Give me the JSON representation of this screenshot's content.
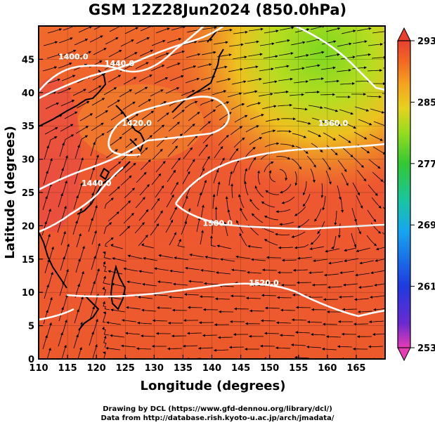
{
  "title": "GSM 12Z28Jun2024 (850.0hPa)",
  "xlabel": "Longitude (degrees)",
  "ylabel": "Latitude  (degrees)",
  "credits": [
    "Drawing by DCL (https://www.gfd-dennou.org/library/dcl/)",
    "Data from http://database.rish.kyoto-u.ac.jp/arch/jmadata/"
  ],
  "map": {
    "lon_range": [
      110,
      170
    ],
    "lat_range": [
      0,
      50
    ],
    "x_ticks": [
      110,
      115,
      120,
      125,
      130,
      135,
      140,
      145,
      150,
      155,
      160,
      165
    ],
    "y_ticks": [
      0,
      5,
      10,
      15,
      20,
      25,
      30,
      35,
      40,
      45
    ],
    "grid": true,
    "field": "temperature (shaded) with streamlines and geopotential height contours"
  },
  "colorbar": {
    "ticks": [
      293,
      285,
      277,
      269,
      261,
      253
    ],
    "min": 253,
    "max": 293,
    "colors": [
      "#e63cb4",
      "#6a2ad0",
      "#1e3ae0",
      "#16a6f0",
      "#18c6a0",
      "#32c832",
      "#96dc1e",
      "#e6d21e",
      "#f5a21e",
      "#f26a22",
      "#e84030"
    ]
  },
  "contours": [
    {
      "label": "1400.0",
      "lon": 116,
      "lat": 45
    },
    {
      "label": "1440.0",
      "lon": 124,
      "lat": 44
    },
    {
      "label": "1420.0",
      "lon": 127,
      "lat": 35
    },
    {
      "label": "1440.0",
      "lon": 120,
      "lat": 26
    },
    {
      "label": "1560.0",
      "lon": 161,
      "lat": 35
    },
    {
      "label": "1500.0",
      "lon": 141,
      "lat": 20
    },
    {
      "label": "1520.0",
      "lon": 149,
      "lat": 11
    }
  ]
}
